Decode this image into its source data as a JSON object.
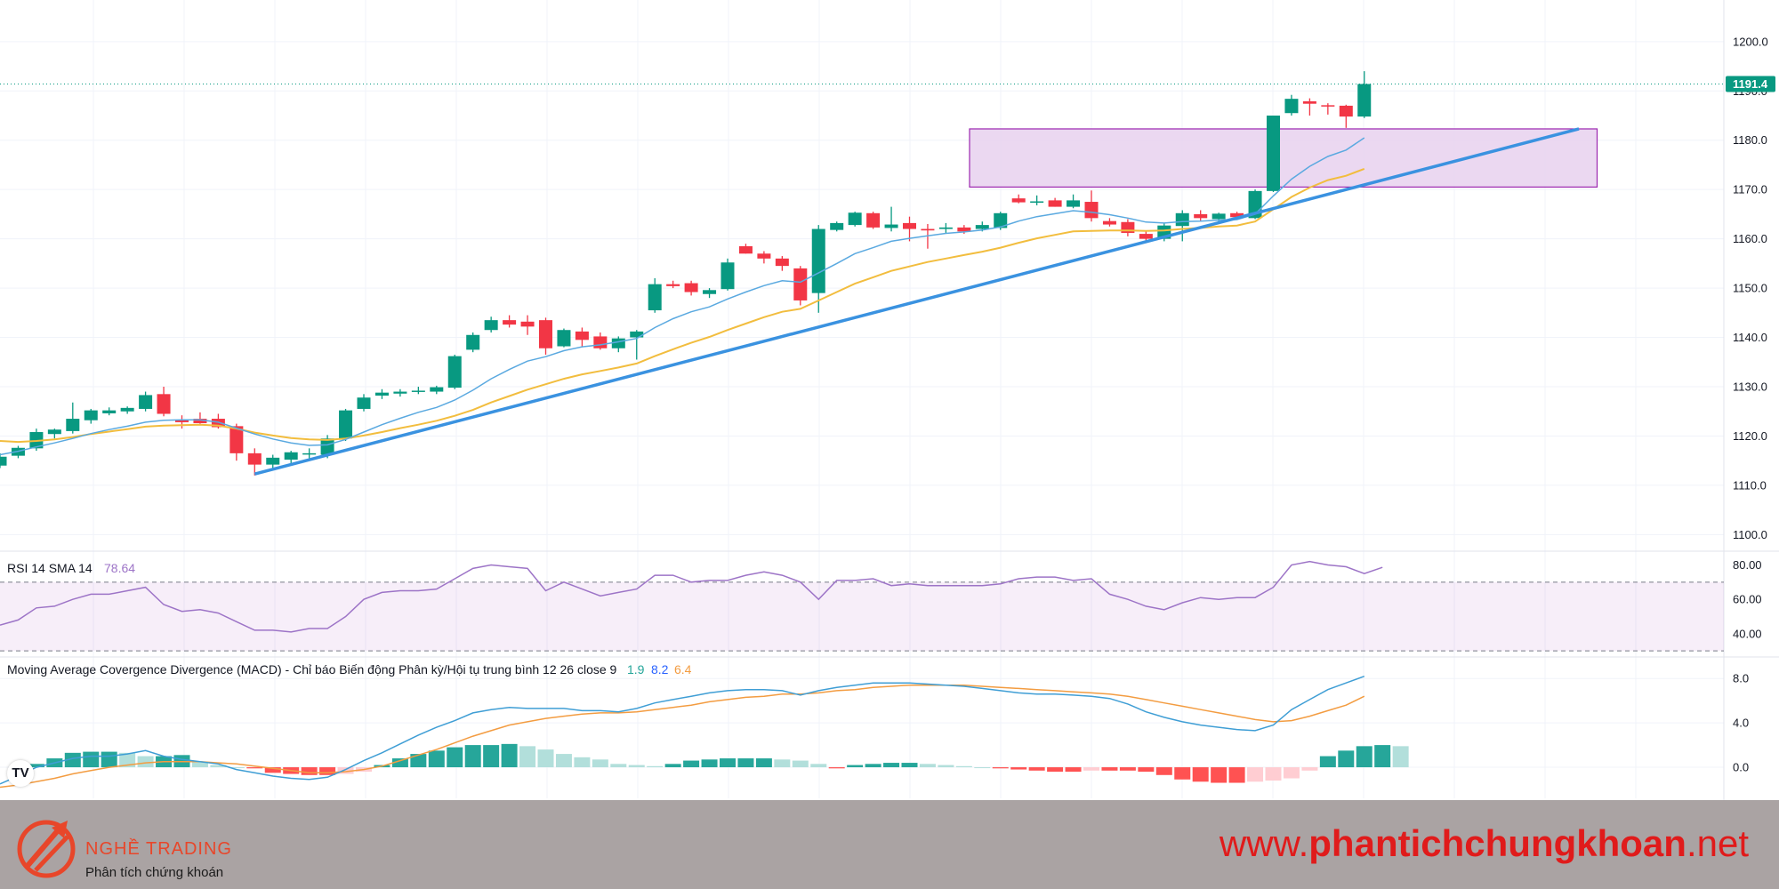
{
  "chart_data": {
    "type": "candlestick",
    "price_panel": {
      "ylim": [
        1097,
        1207
      ],
      "yticks": [
        1100,
        1110,
        1120,
        1130,
        1140,
        1150,
        1160,
        1170,
        1180,
        1190,
        1200
      ],
      "ytick_labels": [
        "1100.0",
        "1110.0",
        "1120.0",
        "1130.0",
        "1140.0",
        "1150.0",
        "1160.0",
        "1170.0",
        "1180.0",
        "1190.0",
        "1200.0"
      ],
      "last_price": 1191.4,
      "last_price_label": "1191.4",
      "candles": [
        {
          "o": 1114,
          "h": 1116.5,
          "l": 1113.5,
          "c": 1115.8
        },
        {
          "o": 1116,
          "h": 1118,
          "l": 1115.5,
          "c": 1117.6
        },
        {
          "o": 1117.5,
          "h": 1121.5,
          "l": 1117,
          "c": 1120.8
        },
        {
          "o": 1120.4,
          "h": 1121.5,
          "l": 1119.5,
          "c": 1121.3
        },
        {
          "o": 1121,
          "h": 1126.8,
          "l": 1120.5,
          "c": 1123.5
        },
        {
          "o": 1123.2,
          "h": 1125.5,
          "l": 1122.5,
          "c": 1125.2
        },
        {
          "o": 1124.6,
          "h": 1125.8,
          "l": 1124.2,
          "c": 1125.2
        },
        {
          "o": 1125,
          "h": 1126,
          "l": 1124.5,
          "c": 1125.7
        },
        {
          "o": 1125.5,
          "h": 1129,
          "l": 1125,
          "c": 1128.3
        },
        {
          "o": 1128.5,
          "h": 1130,
          "l": 1124,
          "c": 1124.5
        },
        {
          "o": 1123.2,
          "h": 1124.2,
          "l": 1121.5,
          "c": 1122.8
        },
        {
          "o": 1123.5,
          "h": 1124.8,
          "l": 1122.5,
          "c": 1122.6
        },
        {
          "o": 1123.5,
          "h": 1124.5,
          "l": 1121.5,
          "c": 1121.8
        },
        {
          "o": 1122,
          "h": 1122.5,
          "l": 1115,
          "c": 1116.5
        },
        {
          "o": 1116.5,
          "h": 1117.5,
          "l": 1112,
          "c": 1114.2
        },
        {
          "o": 1114.2,
          "h": 1116.2,
          "l": 1113.5,
          "c": 1115.6
        },
        {
          "o": 1115.2,
          "h": 1117,
          "l": 1114.5,
          "c": 1116.7
        },
        {
          "o": 1116.4,
          "h": 1117.5,
          "l": 1115.5,
          "c": 1116.5
        },
        {
          "o": 1116.2,
          "h": 1120.2,
          "l": 1115.5,
          "c": 1119.5
        },
        {
          "o": 1119.5,
          "h": 1125.5,
          "l": 1119,
          "c": 1125.2
        },
        {
          "o": 1125.5,
          "h": 1128.5,
          "l": 1125,
          "c": 1127.8
        },
        {
          "o": 1128.2,
          "h": 1129.5,
          "l": 1127.5,
          "c": 1128.8
        },
        {
          "o": 1128.6,
          "h": 1129.5,
          "l": 1128,
          "c": 1129
        },
        {
          "o": 1129,
          "h": 1130,
          "l": 1128.5,
          "c": 1129.2
        },
        {
          "o": 1129,
          "h": 1130.2,
          "l": 1128.5,
          "c": 1129.9
        },
        {
          "o": 1129.8,
          "h": 1136.5,
          "l": 1129.5,
          "c": 1136.2
        },
        {
          "o": 1137.5,
          "h": 1141,
          "l": 1137,
          "c": 1140.5
        },
        {
          "o": 1141.5,
          "h": 1144.2,
          "l": 1141,
          "c": 1143.5
        },
        {
          "o": 1143.5,
          "h": 1144.5,
          "l": 1142,
          "c": 1142.6
        },
        {
          "o": 1143.2,
          "h": 1144.5,
          "l": 1140.5,
          "c": 1142.2
        },
        {
          "o": 1143.5,
          "h": 1144,
          "l": 1136.5,
          "c": 1137.8
        },
        {
          "o": 1138.2,
          "h": 1141.8,
          "l": 1138,
          "c": 1141.5
        },
        {
          "o": 1141.2,
          "h": 1142,
          "l": 1138,
          "c": 1139.5
        },
        {
          "o": 1140.2,
          "h": 1141,
          "l": 1137.5,
          "c": 1137.8
        },
        {
          "o": 1137.8,
          "h": 1140.2,
          "l": 1137,
          "c": 1139.8
        },
        {
          "o": 1140,
          "h": 1141.5,
          "l": 1135.5,
          "c": 1141.2
        },
        {
          "o": 1145.5,
          "h": 1152,
          "l": 1145,
          "c": 1150.8
        },
        {
          "o": 1150.8,
          "h": 1151.5,
          "l": 1150,
          "c": 1150.4
        },
        {
          "o": 1151,
          "h": 1151.5,
          "l": 1148.5,
          "c": 1149.2
        },
        {
          "o": 1148.8,
          "h": 1150,
          "l": 1148,
          "c": 1149.6
        },
        {
          "o": 1149.8,
          "h": 1156,
          "l": 1149.5,
          "c": 1155.2
        },
        {
          "o": 1158.5,
          "h": 1159,
          "l": 1157,
          "c": 1157
        },
        {
          "o": 1157,
          "h": 1157.5,
          "l": 1155,
          "c": 1156
        },
        {
          "o": 1156,
          "h": 1156.5,
          "l": 1153.5,
          "c": 1154.5
        },
        {
          "o": 1154,
          "h": 1154.5,
          "l": 1146.5,
          "c": 1147.5
        },
        {
          "o": 1149,
          "h": 1162.8,
          "l": 1145,
          "c": 1162
        },
        {
          "o": 1161.8,
          "h": 1163.5,
          "l": 1161.5,
          "c": 1163.2
        },
        {
          "o": 1162.8,
          "h": 1165.5,
          "l": 1162.5,
          "c": 1165.3
        },
        {
          "o": 1165.2,
          "h": 1165.5,
          "l": 1162,
          "c": 1162.3
        },
        {
          "o": 1162.2,
          "h": 1166.5,
          "l": 1161.5,
          "c": 1162.9
        },
        {
          "o": 1163.2,
          "h": 1164.5,
          "l": 1159.5,
          "c": 1162
        },
        {
          "o": 1162,
          "h": 1163,
          "l": 1158,
          "c": 1161.7
        },
        {
          "o": 1162,
          "h": 1163.2,
          "l": 1161.2,
          "c": 1162.3
        },
        {
          "o": 1162.3,
          "h": 1162.8,
          "l": 1161,
          "c": 1161.5
        },
        {
          "o": 1162,
          "h": 1163.5,
          "l": 1161.5,
          "c": 1162.8
        },
        {
          "o": 1162.2,
          "h": 1165.5,
          "l": 1161.8,
          "c": 1165.2
        },
        {
          "o": 1168.2,
          "h": 1169,
          "l": 1167.2,
          "c": 1167.4
        },
        {
          "o": 1167.6,
          "h": 1168.8,
          "l": 1166.8,
          "c": 1167.6
        },
        {
          "o": 1167.8,
          "h": 1168.3,
          "l": 1166.5,
          "c": 1166.5
        },
        {
          "o": 1166.5,
          "h": 1169,
          "l": 1166.2,
          "c": 1167.8
        },
        {
          "o": 1167.5,
          "h": 1169.8,
          "l": 1163.5,
          "c": 1164.2
        },
        {
          "o": 1163.6,
          "h": 1164.2,
          "l": 1162.5,
          "c": 1162.9
        },
        {
          "o": 1163.4,
          "h": 1164,
          "l": 1160.5,
          "c": 1161.2
        },
        {
          "o": 1161,
          "h": 1161.5,
          "l": 1159.5,
          "c": 1160
        },
        {
          "o": 1160,
          "h": 1163.2,
          "l": 1159.5,
          "c": 1162.7
        },
        {
          "o": 1162.6,
          "h": 1165.8,
          "l": 1159.5,
          "c": 1165.2
        },
        {
          "o": 1165,
          "h": 1165.8,
          "l": 1163.5,
          "c": 1164.2
        },
        {
          "o": 1164,
          "h": 1165.3,
          "l": 1163.5,
          "c": 1165.1
        },
        {
          "o": 1165.2,
          "h": 1165.5,
          "l": 1164.2,
          "c": 1164.4
        },
        {
          "o": 1164.2,
          "h": 1170,
          "l": 1164,
          "c": 1169.7
        },
        {
          "o": 1169.7,
          "h": 1185,
          "l": 1169.5,
          "c": 1185
        },
        {
          "o": 1185.5,
          "h": 1189.2,
          "l": 1185,
          "c": 1188.4
        },
        {
          "o": 1187.9,
          "h": 1188.5,
          "l": 1185,
          "c": 1187.4
        },
        {
          "o": 1187.1,
          "h": 1187.5,
          "l": 1185.2,
          "c": 1186.9
        },
        {
          "o": 1187,
          "h": 1187.2,
          "l": 1182.5,
          "c": 1184.8
        },
        {
          "o": 1184.8,
          "h": 1194,
          "l": 1184.5,
          "c": 1191.4
        }
      ],
      "ma_fast": [
        1116.2,
        1116.9,
        1117.8,
        1118.6,
        1119.5,
        1120.5,
        1121.3,
        1122,
        1122.8,
        1123.2,
        1123.3,
        1123.3,
        1122.8,
        1121.6,
        1120.4,
        1119.4,
        1118.6,
        1118.1,
        1118.2,
        1119.3,
        1120.8,
        1122.3,
        1123.6,
        1124.8,
        1125.8,
        1127.3,
        1129.3,
        1131.6,
        1133.5,
        1135.2,
        1136.1,
        1137.3,
        1138.1,
        1138.5,
        1139.1,
        1139.8,
        1142,
        1143.8,
        1145.2,
        1146.2,
        1147.8,
        1149.2,
        1150.5,
        1151.5,
        1151.2,
        1153.1,
        1155,
        1157,
        1158.2,
        1159.5,
        1160.1,
        1160.6,
        1161.1,
        1161.4,
        1161.8,
        1162.4,
        1163.6,
        1164.5,
        1165.1,
        1165.7,
        1165.4,
        1164.9,
        1164.2,
        1163.4,
        1163.2,
        1163.5,
        1163.6,
        1163.8,
        1163.9,
        1165,
        1168.7,
        1172.1,
        1174.7,
        1176.7,
        1178,
        1180.5
      ],
      "ma_slow": [
        1119,
        1118.8,
        1119,
        1119.3,
        1119.8,
        1120.4,
        1120.9,
        1121.4,
        1121.9,
        1122.1,
        1122.2,
        1122.3,
        1122.1,
        1121.5,
        1120.7,
        1120.1,
        1119.6,
        1119.3,
        1119.2,
        1119.5,
        1120.1,
        1120.8,
        1121.6,
        1122.3,
        1123.1,
        1124.1,
        1125.3,
        1126.8,
        1128.1,
        1129.4,
        1130.5,
        1131.6,
        1132.5,
        1133.2,
        1133.9,
        1134.7,
        1136.2,
        1137.6,
        1138.9,
        1140.1,
        1141.5,
        1142.8,
        1144.1,
        1145.2,
        1145.8,
        1147.5,
        1149.2,
        1150.9,
        1152.2,
        1153.5,
        1154.4,
        1155.3,
        1156,
        1156.7,
        1157.4,
        1158.2,
        1159.2,
        1160.1,
        1160.8,
        1161.5,
        1161.6,
        1161.7,
        1161.7,
        1161.6,
        1161.7,
        1162,
        1162.2,
        1162.5,
        1162.7,
        1163.5,
        1166,
        1168.5,
        1170.4,
        1171.9,
        1172.8,
        1174.2
      ],
      "trendline": {
        "start": {
          "index": 14,
          "price": 1112.3
        },
        "end": {
          "index": 86.8,
          "price": 1182.3
        }
      },
      "resistance_zone": {
        "start_index": 53.3,
        "end_index": 87.8,
        "top": 1182.3,
        "bottom": 1170.5
      }
    },
    "rsi_panel": {
      "label": "RSI 14 SMA 14",
      "value_label": "78.64",
      "ylim": [
        28,
        87
      ],
      "yticks": [
        80,
        60,
        40
      ],
      "ytick_labels": [
        "80.00",
        "60.00",
        "40.00"
      ],
      "band": [
        70,
        30
      ],
      "values": [
        45,
        48,
        55,
        56,
        60,
        63,
        63,
        65,
        67,
        57,
        53,
        54,
        52,
        47,
        42,
        42,
        41,
        43,
        43,
        50,
        60,
        64,
        65,
        65,
        66,
        72,
        78,
        80,
        79,
        78,
        65,
        70,
        66,
        62,
        64,
        66,
        74,
        74,
        70,
        71,
        71,
        74,
        76,
        74,
        70,
        60,
        71,
        71,
        72,
        68,
        69,
        68,
        68,
        68,
        68,
        69,
        72,
        73,
        73,
        71,
        72,
        63,
        60,
        56,
        54,
        58,
        61,
        60,
        61,
        61,
        67,
        80,
        82,
        80,
        79,
        75,
        78.64
      ]
    },
    "macd_panel": {
      "label": "Moving Average Covergence Divergence (MACD) - Chỉ báo Biến động Phân kỳ/Hội tụ trung bình 12 26 close 9",
      "value_labels": [
        "1.9",
        "8.2",
        "6.4"
      ],
      "series_colors": [
        "#2962ff",
        "#3f9ed5",
        "#f39c41"
      ],
      "ylim": [
        -2.8,
        9.7
      ],
      "yticks": [
        8.0,
        4.0,
        0.0
      ],
      "ytick_labels": [
        "8.0",
        "4.0",
        "0.0"
      ],
      "macd": [
        -1.5,
        -0.8,
        0,
        0.4,
        0.8,
        1,
        1,
        1.2,
        1.5,
        1,
        0.7,
        0.5,
        0.3,
        -0.2,
        -0.5,
        -0.8,
        -1,
        -1.1,
        -0.9,
        -0.2,
        0.6,
        1.3,
        2.1,
        2.9,
        3.6,
        4.2,
        4.9,
        5.2,
        5.4,
        5.3,
        5.3,
        5.3,
        5.1,
        5.1,
        5,
        5.3,
        5.8,
        6.1,
        6.4,
        6.7,
        6.9,
        7,
        7,
        6.9,
        6.5,
        6.9,
        7.2,
        7.4,
        7.6,
        7.6,
        7.6,
        7.5,
        7.4,
        7.3,
        7.1,
        6.9,
        6.7,
        6.6,
        6.6,
        6.5,
        6.4,
        6.2,
        5.7,
        5,
        4.5,
        4.1,
        3.8,
        3.6,
        3.4,
        3.3,
        3.8,
        5.2,
        6.1,
        7,
        7.6,
        8.2
      ],
      "signal": [
        -1.8,
        -1.6,
        -1.3,
        -1,
        -0.6,
        -0.3,
        0,
        0.2,
        0.4,
        0.5,
        0.5,
        0.5,
        0.4,
        0.3,
        0.1,
        -0.1,
        -0.3,
        -0.5,
        -0.5,
        -0.4,
        -0.2,
        0.1,
        0.6,
        1.1,
        1.6,
        2.2,
        2.8,
        3.3,
        3.8,
        4.1,
        4.4,
        4.6,
        4.8,
        4.9,
        4.9,
        5,
        5.2,
        5.4,
        5.6,
        5.9,
        6.1,
        6.3,
        6.4,
        6.6,
        6.6,
        6.7,
        6.9,
        7,
        7.2,
        7.3,
        7.4,
        7.4,
        7.4,
        7.4,
        7.3,
        7.2,
        7.1,
        7,
        6.9,
        6.8,
        6.7,
        6.6,
        6.4,
        6.1,
        5.8,
        5.5,
        5.2,
        4.9,
        4.6,
        4.3,
        4.1,
        4.2,
        4.6,
        5.1,
        5.6,
        6.4
      ],
      "histogram": [
        0.3,
        0.8,
        1.3,
        1.4,
        1.4,
        1.3,
        1,
        1,
        1.1,
        0.5,
        0.2,
        0,
        -0.1,
        -0.5,
        -0.6,
        -0.7,
        -0.7,
        -0.6,
        -0.4,
        0.2,
        0.8,
        1.2,
        1.5,
        1.8,
        2,
        2,
        2.1,
        1.9,
        1.6,
        1.2,
        0.9,
        0.7,
        0.3,
        0.2,
        0.1,
        0.3,
        0.6,
        0.7,
        0.8,
        0.8,
        0.8,
        0.7,
        0.6,
        0.3,
        -0.1,
        0.2,
        0.3,
        0.4,
        0.4,
        0.3,
        0.2,
        0.1,
        0,
        -0.1,
        -0.2,
        -0.3,
        -0.4,
        -0.4,
        -0.3,
        -0.3,
        -0.3,
        -0.4,
        -0.7,
        -1.1,
        -1.3,
        -1.4,
        -1.4,
        -1.3,
        -1.2,
        -1,
        -0.3,
        1,
        1.5,
        1.9,
        2,
        1.9
      ]
    }
  },
  "footer": {
    "brand_name": "NGHỀ TRADING",
    "tagline": "Phân tích chứng khoán",
    "website_prefix": "www.",
    "website_main": "phantichchungkhoan",
    "website_suffix": ".net"
  },
  "colors": {
    "up": "#089981",
    "down": "#f23645",
    "ma_fast": "#5aa9e0",
    "ma_slow": "#f2bd3e",
    "trendline": "#3a92e0",
    "zone_fill": "#e7d1ef",
    "zone_border": "#9c27b0",
    "rsi_line": "#9d74c7",
    "accent_red": "#e8462a"
  }
}
